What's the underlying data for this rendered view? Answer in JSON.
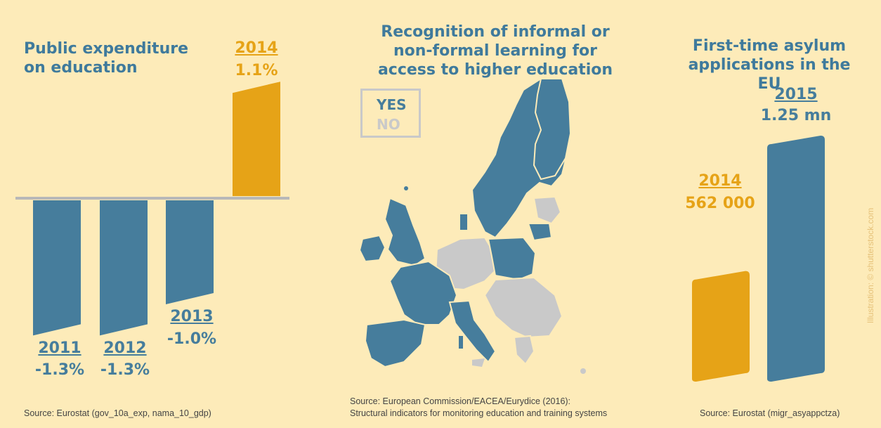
{
  "colors": {
    "background": "#fdebb9",
    "blue": "#467d9c",
    "orange": "#e6a317",
    "grey": "#c9c9c9",
    "axis": "#b8b8b8"
  },
  "chart_data": [
    {
      "type": "bar",
      "title": "Public expenditure on education",
      "categories": [
        "2011",
        "2012",
        "2013",
        "2014"
      ],
      "values": [
        -1.3,
        -1.3,
        -1.0,
        1.1
      ],
      "value_labels": [
        "-1.3%",
        "-1.3%",
        "-1.0%",
        "1.1%"
      ],
      "highlight": "2014",
      "source": "Source:  Eurostat (gov_10a_exp, nama_10_gdp)"
    },
    {
      "type": "other",
      "title": "Recognition of informal or non-formal learning for access to higher education",
      "legend": [
        {
          "label": "YES",
          "color": "#467d9c"
        },
        {
          "label": "NO",
          "color": "#c9c9c9"
        }
      ],
      "source_line1": "Source: European Commission/EACEA/Eurydice (2016):",
      "source_line2": "Structural indicators for monitoring education and training systems"
    },
    {
      "type": "bar",
      "title": "First-time asylum applications in the EU",
      "categories": [
        "2014",
        "2015"
      ],
      "values": [
        562000,
        1250000
      ],
      "value_labels": [
        "562 000",
        "1.25 mn"
      ],
      "source": "Source:  Eurostat (migr_asyappctza)"
    }
  ],
  "credit": "Illustration: © shutterstock.com"
}
